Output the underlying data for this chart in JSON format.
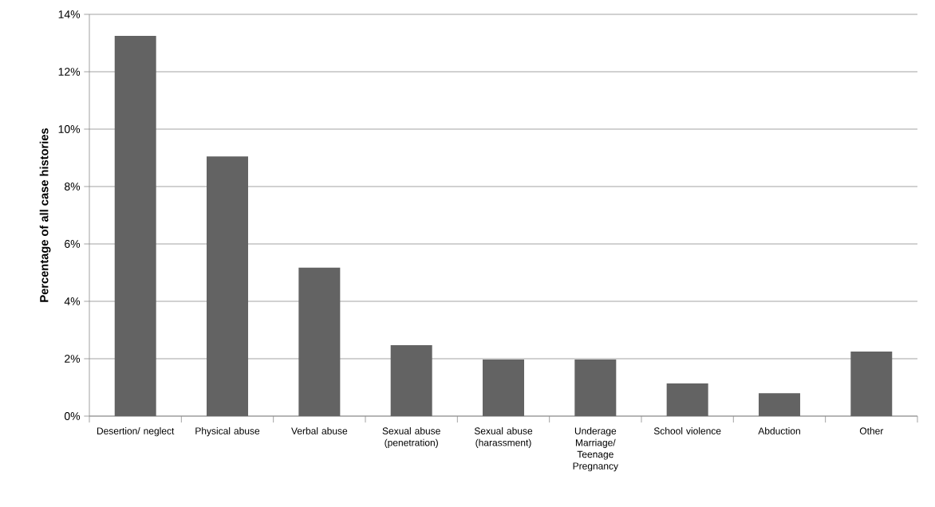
{
  "chart_data": {
    "type": "bar",
    "ylabel": "Percentage  of all case histories",
    "categories": [
      "Desertion/ neglect",
      "Physical abuse",
      "Verbal abuse",
      "Sexual abuse (penetration)",
      "Sexual abuse (harassment)",
      "Underage Marriage/ Teenage Pregnancy",
      "School violence",
      "Abduction",
      "Other"
    ],
    "values": [
      13.25,
      9.05,
      5.17,
      2.47,
      1.97,
      1.97,
      1.14,
      0.8,
      2.25
    ],
    "color": "#636363",
    "ylim": [
      0,
      14
    ],
    "yticks": [
      {
        "value": 0,
        "label": "0%"
      },
      {
        "value": 2,
        "label": "2%"
      },
      {
        "value": 4,
        "label": "4%"
      },
      {
        "value": 6,
        "label": "6%"
      },
      {
        "value": 8,
        "label": "8%"
      },
      {
        "value": 10,
        "label": "10%"
      },
      {
        "value": 12,
        "label": "12%"
      },
      {
        "value": 14,
        "label": "14%"
      }
    ],
    "grid": "y"
  }
}
